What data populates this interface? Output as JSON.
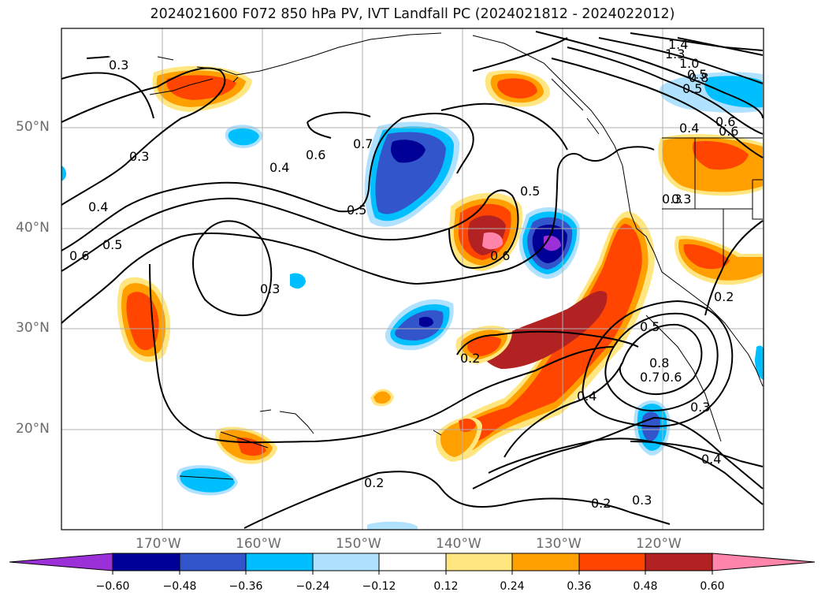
{
  "title": "2024021600 F072 850 hPa PV, IVT Landfall PC (2024021812 - 2024022012)",
  "map": {
    "lat_ticks": [
      "50°N",
      "40°N",
      "30°N",
      "20°N"
    ],
    "lon_ticks": [
      "170°W",
      "160°W",
      "150°W",
      "140°W",
      "130°W",
      "120°W"
    ],
    "gridlines": true,
    "contour_labels": [
      "0.3",
      "1.4",
      "1.3",
      "1.0",
      "0.8",
      "0.5",
      "0.7",
      "0.6",
      "0.4",
      "0.5",
      "0.4",
      "0.6",
      "0.5",
      "0.6",
      "0.3",
      "0.3",
      "0.2",
      "0.5",
      "0.8",
      "0.7",
      "0.6",
      "0.4",
      "0.3",
      "0.3",
      "0.4",
      "0.2",
      "0.2",
      "0.3",
      "0.6",
      "0.5",
      "0.4",
      "0.3",
      "0.5",
      "0.6",
      "0.2"
    ]
  },
  "colorbar": {
    "labels": [
      "−0.60",
      "−0.48",
      "−0.36",
      "−0.24",
      "−0.12",
      "0.12",
      "0.24",
      "0.36",
      "0.48",
      "0.60"
    ],
    "colors": [
      "#9b30d9",
      "#000096",
      "#3355cc",
      "#00bfff",
      "#b0e2ff",
      "#ffffff",
      "#ffe680",
      "#ffa000",
      "#ff4500",
      "#b22222",
      "#ff85aa"
    ]
  }
}
